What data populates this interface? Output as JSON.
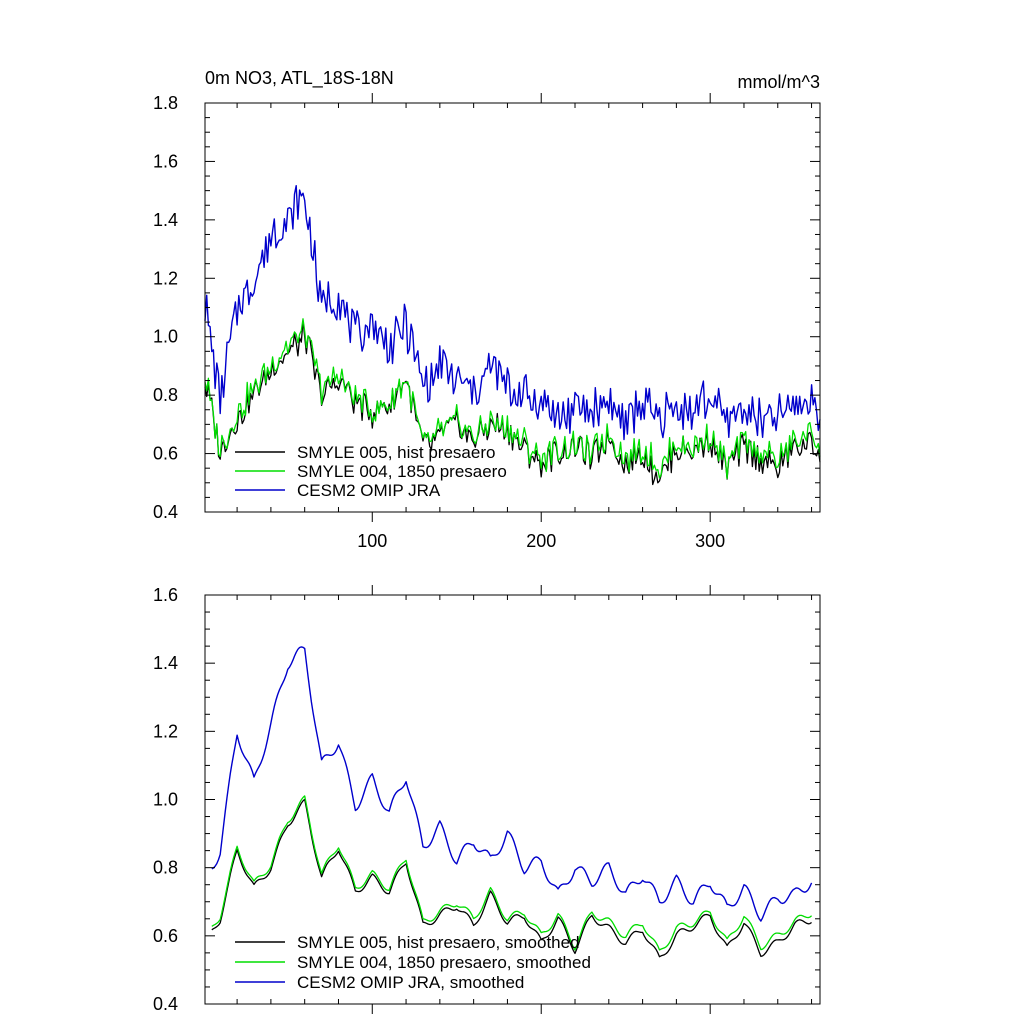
{
  "chart_data": [
    {
      "type": "line",
      "title": "0m NO3, ATL_18S-18N",
      "units": "mmol/m^3",
      "xlim": [
        1,
        365
      ],
      "ylim": [
        0.4,
        1.8
      ],
      "yticks": [
        0.4,
        0.6,
        0.8,
        1.0,
        1.2,
        1.4,
        1.6,
        1.8
      ],
      "ytick_labels": [
        "0.4",
        "0.6",
        "0.8",
        "1.0",
        "1.2",
        "1.4",
        "1.6",
        "1.8"
      ],
      "xticks": [
        100,
        200,
        300
      ],
      "xtick_labels": [
        "100",
        "200",
        "300"
      ],
      "legend": [
        "SMYLE 005, hist presaero",
        "SMYLE 004, 1850 presaero",
        "CESM2 OMIP JRA"
      ],
      "series": [
        {
          "name": "SMYLE 005, hist presaero",
          "color": "#000000",
          "x": [
            1,
            10,
            20,
            30,
            40,
            50,
            60,
            70,
            80,
            90,
            100,
            110,
            120,
            130,
            140,
            150,
            160,
            170,
            180,
            190,
            200,
            210,
            220,
            230,
            240,
            250,
            260,
            270,
            280,
            290,
            300,
            310,
            320,
            330,
            340,
            350,
            360,
            365
          ],
          "values": [
            0.85,
            0.6,
            0.72,
            0.8,
            0.88,
            0.95,
            1.0,
            0.8,
            0.85,
            0.78,
            0.74,
            0.76,
            0.86,
            0.62,
            0.66,
            0.7,
            0.64,
            0.7,
            0.68,
            0.62,
            0.56,
            0.6,
            0.62,
            0.58,
            0.66,
            0.56,
            0.6,
            0.52,
            0.62,
            0.6,
            0.65,
            0.54,
            0.62,
            0.58,
            0.55,
            0.62,
            0.64,
            0.6
          ]
        },
        {
          "name": "SMYLE 004, 1850 presaero",
          "color": "#00dd00",
          "x": [
            1,
            10,
            20,
            30,
            40,
            50,
            60,
            70,
            80,
            90,
            100,
            110,
            120,
            130,
            140,
            150,
            160,
            170,
            180,
            190,
            200,
            210,
            220,
            230,
            240,
            250,
            260,
            270,
            280,
            290,
            300,
            310,
            320,
            330,
            340,
            350,
            360,
            365
          ],
          "values": [
            0.86,
            0.62,
            0.74,
            0.82,
            0.9,
            0.97,
            1.02,
            0.82,
            0.87,
            0.79,
            0.75,
            0.77,
            0.86,
            0.63,
            0.67,
            0.71,
            0.66,
            0.71,
            0.69,
            0.64,
            0.58,
            0.62,
            0.63,
            0.6,
            0.67,
            0.58,
            0.62,
            0.55,
            0.64,
            0.62,
            0.67,
            0.56,
            0.64,
            0.6,
            0.58,
            0.64,
            0.67,
            0.63
          ]
        },
        {
          "name": "CESM2 OMIP JRA",
          "color": "#0000cc",
          "x": [
            1,
            10,
            20,
            30,
            40,
            50,
            60,
            70,
            80,
            90,
            100,
            110,
            120,
            130,
            140,
            150,
            160,
            170,
            180,
            190,
            200,
            210,
            220,
            230,
            240,
            250,
            260,
            270,
            280,
            290,
            300,
            310,
            320,
            330,
            340,
            350,
            360,
            365
          ],
          "values": [
            1.1,
            0.8,
            1.1,
            1.2,
            1.35,
            1.4,
            1.48,
            1.1,
            1.15,
            1.0,
            1.05,
            0.95,
            1.05,
            0.82,
            0.9,
            0.85,
            0.8,
            0.9,
            0.82,
            0.8,
            0.78,
            0.72,
            0.75,
            0.74,
            0.78,
            0.7,
            0.78,
            0.72,
            0.76,
            0.74,
            0.8,
            0.7,
            0.76,
            0.7,
            0.72,
            0.76,
            0.78,
            0.76
          ]
        }
      ]
    },
    {
      "type": "line",
      "title": "",
      "xlim": [
        1,
        365
      ],
      "ylim": [
        0.4,
        1.6
      ],
      "yticks": [
        0.4,
        0.6,
        0.8,
        1.0,
        1.2,
        1.4,
        1.6
      ],
      "ytick_labels": [
        "0.4",
        "0.6",
        "0.8",
        "1.0",
        "1.2",
        "1.4",
        "1.6"
      ],
      "xticks": [
        100,
        200,
        300
      ],
      "legend": [
        "SMYLE 005, hist presaero, smoothed",
        "SMYLE 004, 1850 presaero, smoothed",
        "CESM2 OMIP JRA, smoothed"
      ],
      "series": [
        {
          "name": "SMYLE 005, hist presaero, smoothed",
          "color": "#000000",
          "x": [
            5,
            10,
            20,
            30,
            40,
            50,
            60,
            70,
            80,
            90,
            100,
            110,
            120,
            130,
            140,
            150,
            160,
            170,
            180,
            190,
            200,
            210,
            220,
            230,
            240,
            250,
            260,
            270,
            280,
            290,
            300,
            310,
            320,
            330,
            340,
            350,
            360
          ],
          "values": [
            0.61,
            0.65,
            0.85,
            0.74,
            0.8,
            0.93,
            0.99,
            0.77,
            0.86,
            0.73,
            0.77,
            0.73,
            0.82,
            0.63,
            0.66,
            0.69,
            0.63,
            0.72,
            0.64,
            0.66,
            0.58,
            0.65,
            0.56,
            0.66,
            0.62,
            0.58,
            0.62,
            0.53,
            0.6,
            0.63,
            0.66,
            0.56,
            0.64,
            0.55,
            0.58,
            0.63,
            0.65
          ]
        },
        {
          "name": "SMYLE 004, 1850 presaero, smoothed",
          "color": "#00dd00",
          "x": [
            5,
            10,
            20,
            30,
            40,
            50,
            60,
            70,
            80,
            90,
            100,
            110,
            120,
            130,
            140,
            150,
            160,
            170,
            180,
            190,
            200,
            210,
            220,
            230,
            240,
            250,
            260,
            270,
            280,
            290,
            300,
            310,
            320,
            330,
            340,
            350,
            360
          ],
          "values": [
            0.62,
            0.66,
            0.86,
            0.75,
            0.81,
            0.94,
            1.0,
            0.78,
            0.87,
            0.74,
            0.78,
            0.74,
            0.83,
            0.64,
            0.67,
            0.7,
            0.65,
            0.73,
            0.65,
            0.67,
            0.6,
            0.66,
            0.57,
            0.67,
            0.64,
            0.6,
            0.64,
            0.55,
            0.62,
            0.64,
            0.67,
            0.58,
            0.66,
            0.57,
            0.6,
            0.64,
            0.67
          ]
        },
        {
          "name": "CESM2 OMIP JRA, smoothed",
          "color": "#0000cc",
          "x": [
            5,
            10,
            20,
            30,
            40,
            50,
            60,
            70,
            80,
            90,
            100,
            110,
            120,
            130,
            140,
            150,
            160,
            170,
            180,
            190,
            200,
            210,
            220,
            230,
            240,
            250,
            260,
            270,
            280,
            290,
            300,
            310,
            320,
            330,
            340,
            350,
            360
          ],
          "values": [
            0.8,
            0.85,
            1.2,
            1.05,
            1.22,
            1.4,
            1.44,
            1.1,
            1.17,
            0.98,
            1.06,
            0.96,
            1.07,
            0.86,
            0.92,
            0.82,
            0.88,
            0.82,
            0.9,
            0.8,
            0.82,
            0.72,
            0.8,
            0.76,
            0.8,
            0.72,
            0.78,
            0.7,
            0.76,
            0.7,
            0.76,
            0.68,
            0.74,
            0.66,
            0.71,
            0.72,
            0.76
          ]
        }
      ]
    }
  ]
}
